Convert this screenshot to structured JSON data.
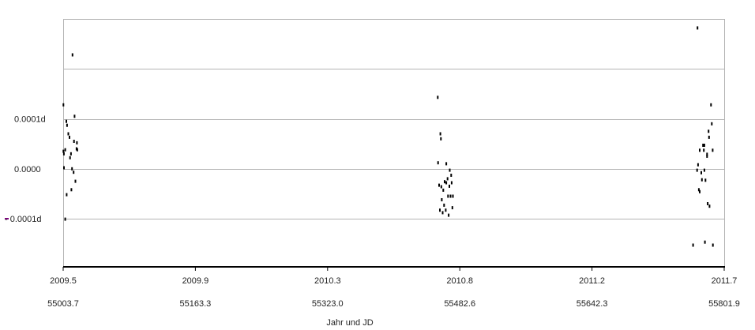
{
  "chart_data": {
    "type": "scatter",
    "title": "",
    "xlabel": "Jahr und JD",
    "ylabel": "",
    "x_ticks": [
      {
        "year": "2009.5",
        "jd": "55003.7"
      },
      {
        "year": "2009.9",
        "jd": "55163.3"
      },
      {
        "year": "2010.3",
        "jd": "55323.0"
      },
      {
        "year": "2010.8",
        "jd": "55482.6"
      },
      {
        "year": "2011.2",
        "jd": "55642.3"
      },
      {
        "year": "2011.7",
        "jd": "55801.9"
      }
    ],
    "y_ticks": [
      {
        "label": "0.0001d",
        "value": 0.0001
      },
      {
        "label": "0.0000",
        "value": 0
      },
      {
        "label": "- 0.0001d",
        "value": -0.0001
      }
    ],
    "y_gridlines": [
      0.0003,
      0.0002,
      0.0001,
      0,
      -0.0001
    ],
    "xlim": [
      55003.7,
      55801.9
    ],
    "ylim": [
      -0.0002,
      0.00032
    ],
    "grid": true,
    "marker_color": "#000000",
    "grid_color": "#b4b4b4",
    "tick_minus_color": "#800080",
    "series": [
      {
        "points": [
          [
            55004.0,
            0.000128
          ],
          [
            55004.0,
            3.5e-05
          ],
          [
            55004.6,
            3e-05
          ],
          [
            55004.7,
            2e-06
          ],
          [
            55006.2,
            3.8e-05
          ],
          [
            55006.2,
            -0.000101
          ],
          [
            55007.5,
            9.5e-05
          ],
          [
            55007.9,
            -5.2e-05
          ],
          [
            55008.4,
            8.7e-05
          ],
          [
            55009.9,
            7e-05
          ],
          [
            55011.3,
            6.3e-05
          ],
          [
            55012.0,
            2.2e-05
          ],
          [
            55013.1,
            3e-05
          ],
          [
            55013.6,
            -4.2e-05
          ],
          [
            55014.4,
            0.0
          ],
          [
            55015.0,
            0.000228
          ],
          [
            55016.3,
            -7e-06
          ],
          [
            55016.8,
            5.5e-05
          ],
          [
            55017.4,
            0.000105
          ],
          [
            55018.5,
            -2.5e-05
          ],
          [
            55019.8,
            4e-05
          ],
          [
            55020.3,
            5.2e-05
          ],
          [
            55020.8,
            3.8e-05
          ],
          [
            55456.0,
            0.000143
          ],
          [
            55456.4,
            1.2e-05
          ],
          [
            55457.6,
            -3.3e-05
          ],
          [
            55458.6,
            -8.3e-05
          ],
          [
            55459.2,
            7e-05
          ],
          [
            55459.8,
            6e-05
          ],
          [
            55460.3,
            -3.6e-05
          ],
          [
            55460.9,
            -6.2e-05
          ],
          [
            55461.9,
            -8.8e-05
          ],
          [
            55462.7,
            -4.3e-05
          ],
          [
            55463.6,
            -7.3e-05
          ],
          [
            55464.3,
            -2.6e-05
          ],
          [
            55465.6,
            -8.3e-05
          ],
          [
            55466.3,
            1e-05
          ],
          [
            55466.3,
            -2.8e-05
          ],
          [
            55467.8,
            -2e-05
          ],
          [
            55468.4,
            -5.5e-05
          ],
          [
            55469.2,
            -9.3e-05
          ],
          [
            55470.0,
            -3.5e-05
          ],
          [
            55470.5,
            -3e-06
          ],
          [
            55471.5,
            -5.5e-05
          ],
          [
            55472.2,
            -1.3e-05
          ],
          [
            55472.8,
            -2.8e-05
          ],
          [
            55473.7,
            -7.8e-05
          ],
          [
            55474.3,
            -5.5e-05
          ],
          [
            55769.2,
            -3e-06
          ],
          [
            55769.7,
            0.000282
          ],
          [
            55770.3,
            8e-06
          ],
          [
            55771.3,
            -4.2e-05
          ],
          [
            55772.3,
            3.7e-05
          ],
          [
            55772.3,
            -4.6e-05
          ],
          [
            55774.2,
            -8e-06
          ],
          [
            55775.0,
            -2.2e-05
          ],
          [
            55776.3,
            4.7e-05
          ],
          [
            55777.3,
            3.7e-05
          ],
          [
            55778.0,
            4.7e-05
          ],
          [
            55778.0,
            -3e-06
          ],
          [
            55778.6,
            -0.000147
          ],
          [
            55779.3,
            -2.3e-05
          ],
          [
            55781.2,
            2.9e-05
          ],
          [
            55781.2,
            2.5e-05
          ],
          [
            55782.0,
            -7e-05
          ],
          [
            55783.0,
            7.5e-05
          ],
          [
            55783.6,
            6.3e-05
          ],
          [
            55784.2,
            -7.5e-05
          ],
          [
            55786.0,
            0.000128
          ],
          [
            55786.9,
            9e-05
          ],
          [
            55788.0,
            3.7e-05
          ],
          [
            55788.3,
            -0.000153
          ],
          [
            55764.3,
            -0.000153
          ]
        ]
      }
    ]
  }
}
